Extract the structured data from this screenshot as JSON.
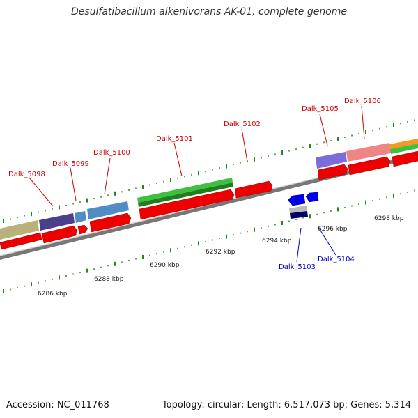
{
  "title": "Desulfatibacillum alkenivorans AK-01, complete genome",
  "footer": {
    "accession": "Accession: NC_011768",
    "stats": "Topology: circular; Length: 6,517,073 bp; Genes: 5,314"
  },
  "axis": {
    "tick_labels": [
      "6286 kbp",
      "6288 kbp",
      "6290 kbp",
      "6292 kbp",
      "6294 kbp",
      "6296 kbp",
      "6298 kbp"
    ]
  },
  "colors": {
    "forward_label": "#cc0000",
    "reverse_label": "#0000cc",
    "cds": "#ee0000",
    "reverse_cds": "#0000ee",
    "tick": "#228822",
    "backbone": "#888888"
  },
  "genes": [
    {
      "name": "Dalk_5098",
      "strand": "forward"
    },
    {
      "name": "Dalk_5099",
      "strand": "forward"
    },
    {
      "name": "Dalk_5100",
      "strand": "forward"
    },
    {
      "name": "Dalk_5101",
      "strand": "forward"
    },
    {
      "name": "Dalk_5102",
      "strand": "forward"
    },
    {
      "name": "Dalk_5103",
      "strand": "reverse"
    },
    {
      "name": "Dalk_5104",
      "strand": "reverse"
    },
    {
      "name": "Dalk_5105",
      "strand": "forward"
    },
    {
      "name": "Dalk_5106",
      "strand": "forward"
    }
  ]
}
